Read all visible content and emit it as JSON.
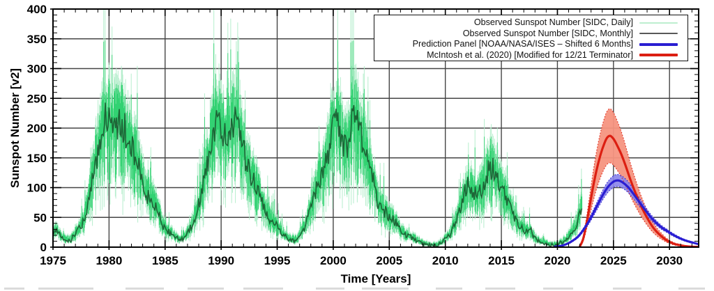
{
  "chart_data": {
    "type": "line",
    "title": "",
    "xlabel": "Time [Years]",
    "ylabel": "Sunspot Number [v2]",
    "xlim": [
      1975,
      2032.6
    ],
    "ylim": [
      0,
      400
    ],
    "xticks": [
      1975,
      1980,
      1985,
      1990,
      1995,
      2000,
      2005,
      2010,
      2015,
      2020,
      2025,
      2030
    ],
    "yticks": [
      0,
      50,
      100,
      150,
      200,
      250,
      300,
      350,
      400
    ],
    "x_minor_step": 1,
    "y_minor_step": 10,
    "grid": true,
    "legend_position": "top-right",
    "legend": [
      {
        "label": "Observed Sunspot Number [SIDC, Daily]",
        "color": "#bdeecf",
        "thickness": 2
      },
      {
        "label": "Observed Sunspot Number [SIDC, Monthly]",
        "color": "#585858",
        "thickness": 2
      },
      {
        "label": "Prediction Panel [NOAA/NASA/ISES – Shifted 6 Months]",
        "color": "#2a1ed2",
        "thickness": 4
      },
      {
        "label": "McIntosh et al. (2020) [Modified for 12/21 Terminator]",
        "color": "#dc1f12",
        "thickness": 4
      }
    ],
    "series": [
      {
        "name": "observed_daily",
        "kind": "noisy-envelope-of-monthly",
        "color_light": "#b2edca",
        "color_bright": "#2bd06d",
        "x_start": 1975.0,
        "x_end": 2022.2
      },
      {
        "name": "observed_monthly",
        "kind": "jagged-line",
        "color": "#1b5a31",
        "points": [
          [
            1975.0,
            22
          ],
          [
            1975.3,
            30
          ],
          [
            1975.7,
            18
          ],
          [
            1976.2,
            12
          ],
          [
            1976.6,
            13
          ],
          [
            1977.0,
            22
          ],
          [
            1977.4,
            32
          ],
          [
            1977.8,
            48
          ],
          [
            1978.2,
            85
          ],
          [
            1978.6,
            125
          ],
          [
            1979.0,
            165
          ],
          [
            1979.4,
            195
          ],
          [
            1979.8,
            225
          ],
          [
            1980.1,
            205
          ],
          [
            1980.4,
            198
          ],
          [
            1980.8,
            210
          ],
          [
            1981.2,
            205
          ],
          [
            1981.6,
            185
          ],
          [
            1982.0,
            165
          ],
          [
            1982.4,
            150
          ],
          [
            1982.8,
            125
          ],
          [
            1983.2,
            95
          ],
          [
            1983.6,
            85
          ],
          [
            1984.0,
            75
          ],
          [
            1984.4,
            60
          ],
          [
            1984.8,
            35
          ],
          [
            1985.2,
            28
          ],
          [
            1985.6,
            22
          ],
          [
            1986.0,
            15
          ],
          [
            1986.4,
            12
          ],
          [
            1986.8,
            18
          ],
          [
            1987.2,
            30
          ],
          [
            1987.6,
            45
          ],
          [
            1988.0,
            70
          ],
          [
            1988.4,
            105
          ],
          [
            1988.8,
            145
          ],
          [
            1989.2,
            185
          ],
          [
            1989.6,
            210
          ],
          [
            1990.0,
            200
          ],
          [
            1990.4,
            192
          ],
          [
            1990.8,
            198
          ],
          [
            1991.2,
            212
          ],
          [
            1991.6,
            200
          ],
          [
            1992.0,
            160
          ],
          [
            1992.4,
            135
          ],
          [
            1992.8,
            120
          ],
          [
            1993.2,
            100
          ],
          [
            1993.6,
            82
          ],
          [
            1994.0,
            60
          ],
          [
            1994.4,
            48
          ],
          [
            1994.8,
            40
          ],
          [
            1995.2,
            30
          ],
          [
            1995.6,
            22
          ],
          [
            1996.0,
            14
          ],
          [
            1996.4,
            11
          ],
          [
            1996.8,
            14
          ],
          [
            1997.2,
            25
          ],
          [
            1997.6,
            42
          ],
          [
            1998.0,
            70
          ],
          [
            1998.4,
            95
          ],
          [
            1998.8,
            115
          ],
          [
            1999.2,
            135
          ],
          [
            1999.6,
            160
          ],
          [
            2000.0,
            200
          ],
          [
            2000.4,
            215
          ],
          [
            2000.8,
            180
          ],
          [
            2001.2,
            170
          ],
          [
            2001.6,
            205
          ],
          [
            2002.0,
            215
          ],
          [
            2002.4,
            195
          ],
          [
            2002.8,
            165
          ],
          [
            2003.2,
            130
          ],
          [
            2003.6,
            110
          ],
          [
            2004.0,
            75
          ],
          [
            2004.4,
            65
          ],
          [
            2004.8,
            55
          ],
          [
            2005.2,
            48
          ],
          [
            2005.6,
            42
          ],
          [
            2006.0,
            28
          ],
          [
            2006.4,
            22
          ],
          [
            2006.8,
            18
          ],
          [
            2007.2,
            14
          ],
          [
            2007.6,
            10
          ],
          [
            2008.0,
            6
          ],
          [
            2008.4,
            4
          ],
          [
            2008.8,
            3
          ],
          [
            2009.2,
            3
          ],
          [
            2009.6,
            6
          ],
          [
            2010.0,
            14
          ],
          [
            2010.4,
            22
          ],
          [
            2010.8,
            35
          ],
          [
            2011.2,
            60
          ],
          [
            2011.6,
            85
          ],
          [
            2012.0,
            105
          ],
          [
            2012.4,
            95
          ],
          [
            2012.8,
            88
          ],
          [
            2013.2,
            95
          ],
          [
            2013.6,
            115
          ],
          [
            2014.0,
            135
          ],
          [
            2014.4,
            125
          ],
          [
            2014.8,
            105
          ],
          [
            2015.2,
            90
          ],
          [
            2015.6,
            78
          ],
          [
            2016.0,
            55
          ],
          [
            2016.4,
            42
          ],
          [
            2016.8,
            32
          ],
          [
            2017.2,
            25
          ],
          [
            2017.6,
            30
          ],
          [
            2018.0,
            14
          ],
          [
            2018.4,
            10
          ],
          [
            2018.8,
            8
          ],
          [
            2019.2,
            5
          ],
          [
            2019.6,
            3
          ],
          [
            2020.0,
            4
          ],
          [
            2020.4,
            8
          ],
          [
            2020.8,
            14
          ],
          [
            2021.2,
            22
          ],
          [
            2021.6,
            32
          ],
          [
            2022.0,
            55
          ],
          [
            2022.2,
            75
          ]
        ]
      },
      {
        "name": "prediction_panel",
        "kind": "smooth-line-with-band",
        "color": "#2a1ed2",
        "band_color": "#8a84ea",
        "band_fraction": 0.085,
        "points": [
          [
            2019.8,
            1
          ],
          [
            2020.3,
            2
          ],
          [
            2020.8,
            5
          ],
          [
            2021.3,
            10
          ],
          [
            2021.8,
            17
          ],
          [
            2022.2,
            26
          ],
          [
            2022.6,
            37
          ],
          [
            2023.0,
            50
          ],
          [
            2023.5,
            68
          ],
          [
            2024.0,
            86
          ],
          [
            2024.5,
            101
          ],
          [
            2025.0,
            110
          ],
          [
            2025.4,
            112
          ],
          [
            2025.8,
            109
          ],
          [
            2026.3,
            101
          ],
          [
            2026.8,
            89
          ],
          [
            2027.3,
            76
          ],
          [
            2027.8,
            63
          ],
          [
            2028.3,
            51
          ],
          [
            2028.8,
            41
          ],
          [
            2029.3,
            33
          ],
          [
            2029.8,
            27
          ],
          [
            2030.3,
            21
          ],
          [
            2030.8,
            16
          ],
          [
            2031.3,
            12
          ],
          [
            2031.8,
            9
          ],
          [
            2032.2,
            7
          ],
          [
            2032.6,
            5
          ]
        ]
      },
      {
        "name": "mcintosh_2020",
        "kind": "smooth-line-with-band",
        "color": "#dc1f12",
        "band_color": "#f59480",
        "band_fraction": 0.24,
        "points": [
          [
            2022.0,
            1
          ],
          [
            2022.3,
            14
          ],
          [
            2022.6,
            40
          ],
          [
            2022.9,
            72
          ],
          [
            2023.2,
            103
          ],
          [
            2023.5,
            130
          ],
          [
            2023.8,
            152
          ],
          [
            2024.1,
            170
          ],
          [
            2024.4,
            183
          ],
          [
            2024.7,
            187
          ],
          [
            2025.0,
            182
          ],
          [
            2025.3,
            172
          ],
          [
            2025.7,
            156
          ],
          [
            2026.1,
            136
          ],
          [
            2026.5,
            114
          ],
          [
            2026.9,
            94
          ],
          [
            2027.3,
            76
          ],
          [
            2027.7,
            60
          ],
          [
            2028.1,
            46
          ],
          [
            2028.5,
            34
          ],
          [
            2028.9,
            25
          ],
          [
            2029.3,
            18
          ],
          [
            2029.7,
            12
          ],
          [
            2030.1,
            8
          ],
          [
            2030.5,
            5
          ],
          [
            2031.0,
            3
          ],
          [
            2031.5,
            1.5
          ],
          [
            2032.0,
            0.7
          ],
          [
            2032.6,
            0.3
          ]
        ]
      }
    ],
    "colors": {
      "grid": "#454545",
      "frame": "#000000",
      "tick_label": "#000000"
    }
  }
}
